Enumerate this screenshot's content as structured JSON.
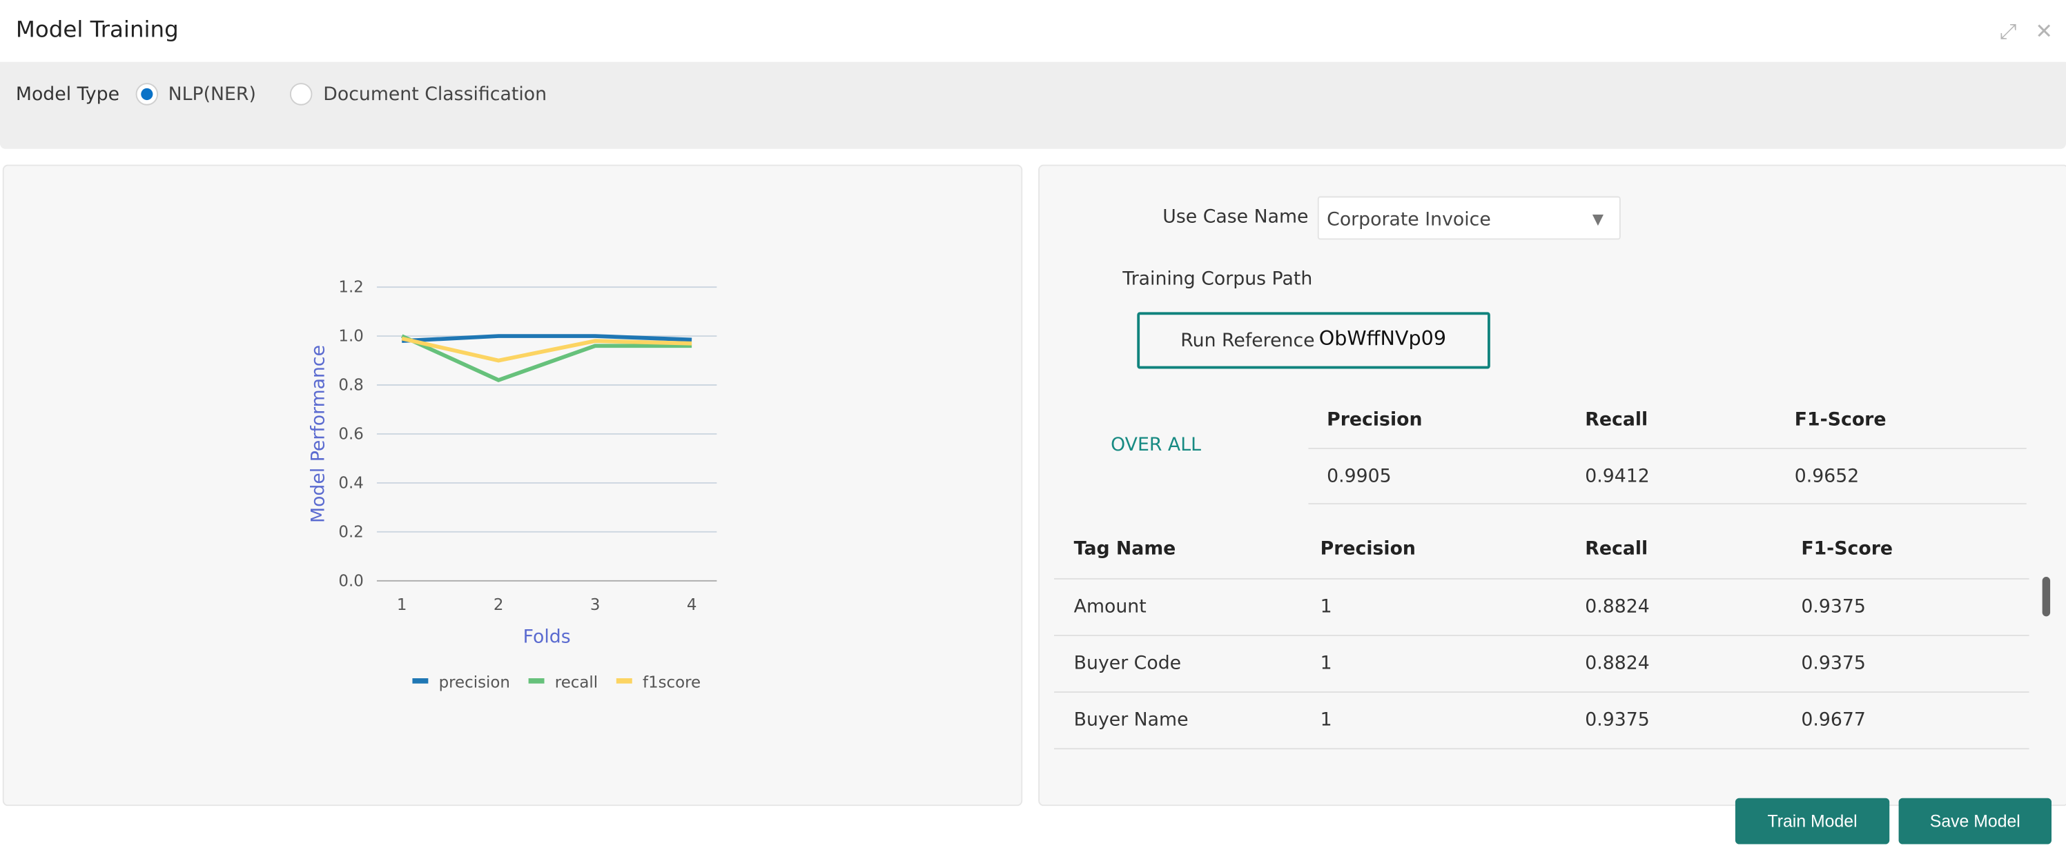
{
  "window": {
    "title": "Model Training",
    "icons": [
      "collapse-icon",
      "close-icon"
    ]
  },
  "model_type": {
    "label": "Model Type",
    "options": [
      {
        "label": "NLP(NER)",
        "selected": true
      },
      {
        "label": "Document Classification",
        "selected": false
      }
    ]
  },
  "form": {
    "use_case_label": "Use Case Name",
    "use_case_value": "Corporate Invoice",
    "training_corpus_label": "Training Corpus Path",
    "run_reference_label": "Run Reference",
    "run_reference_value": "ObWffNVp09"
  },
  "overall": {
    "label": "OVER ALL",
    "headers": [
      "Precision",
      "Recall",
      "F1-Score"
    ],
    "values": [
      "0.9905",
      "0.9412",
      "0.9652"
    ]
  },
  "tags": {
    "headers": [
      "Tag Name",
      "Precision",
      "Recall",
      "F1-Score"
    ],
    "rows": [
      [
        "Amount",
        "1",
        "0.8824",
        "0.9375"
      ],
      [
        "Buyer Code",
        "1",
        "0.8824",
        "0.9375"
      ],
      [
        "Buyer Name",
        "1",
        "0.9375",
        "0.9677"
      ]
    ]
  },
  "buttons": {
    "train": "Train Model",
    "save": "Save Model"
  },
  "colors": {
    "accent": "#1d7c74",
    "radio": "#0a72c7"
  },
  "chart_data": {
    "type": "line",
    "xlabel": "Folds",
    "ylabel": "Model Performance",
    "x": [
      1,
      2,
      3,
      4
    ],
    "x_tick_labels": [
      "1",
      "2",
      "3",
      "4"
    ],
    "y_tick_labels": [
      "0.0",
      "0.2",
      "0.4",
      "0.6",
      "0.8",
      "1.0",
      "1.2"
    ],
    "ylim": [
      0,
      1.2
    ],
    "grid": true,
    "legend": "bottom",
    "series": [
      {
        "name": "precision",
        "color": "#1f77b4",
        "values": [
          0.98,
          1.0,
          1.0,
          0.985
        ]
      },
      {
        "name": "recall",
        "color": "#66c17b",
        "values": [
          1.0,
          0.82,
          0.96,
          0.96
        ]
      },
      {
        "name": "f1score",
        "color": "#fcd462",
        "values": [
          0.99,
          0.9,
          0.98,
          0.97
        ]
      }
    ]
  }
}
